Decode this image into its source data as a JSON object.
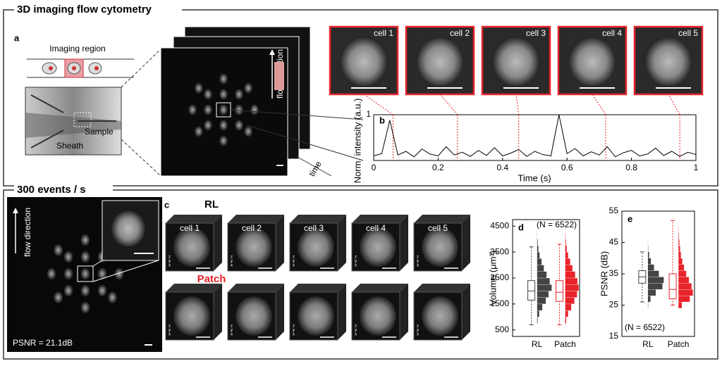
{
  "top_section": {
    "title": "3D imaging flow cytometry"
  },
  "panel_a": {
    "label": "a",
    "imaging_region": "Imaging region",
    "sample": "Sample",
    "sheath": "Sheath",
    "flow_direction": "flow direction",
    "time": "time"
  },
  "cells_top": [
    "cell 1",
    "cell 2",
    "cell 3",
    "cell 4",
    "cell 5"
  ],
  "panel_b": {
    "label": "b",
    "type": "line",
    "x_label": "Time (s)",
    "y_label": "Norm. intensity (a.u.)",
    "xlim": [
      0,
      1
    ],
    "xticks": [
      0,
      0.2,
      0.4,
      0.6,
      0.8,
      1
    ],
    "ylim": [
      0,
      1
    ],
    "yticks": [
      1
    ],
    "color": "#000000",
    "marker_color": "#e8232a",
    "x": [
      0,
      0.025,
      0.05,
      0.075,
      0.1,
      0.125,
      0.15,
      0.175,
      0.2,
      0.225,
      0.25,
      0.275,
      0.3,
      0.325,
      0.35,
      0.375,
      0.4,
      0.425,
      0.45,
      0.475,
      0.5,
      0.525,
      0.55,
      0.575,
      0.6,
      0.625,
      0.65,
      0.675,
      0.7,
      0.725,
      0.75,
      0.775,
      0.8,
      0.825,
      0.85,
      0.875,
      0.9,
      0.925,
      0.95,
      0.975,
      1
    ],
    "values": [
      0.1,
      0.15,
      0.88,
      0.12,
      0.2,
      0.08,
      0.25,
      0.14,
      0.1,
      0.3,
      0.12,
      0.18,
      0.09,
      0.22,
      0.11,
      0.28,
      0.1,
      0.16,
      0.24,
      0.09,
      0.2,
      0.13,
      0.1,
      1.0,
      0.15,
      0.26,
      0.1,
      0.19,
      0.12,
      0.3,
      0.08,
      0.17,
      0.22,
      0.1,
      0.14,
      0.27,
      0.11,
      0.2,
      0.09,
      0.18,
      0.13
    ],
    "cell_times": [
      0.06,
      0.26,
      0.45,
      0.72,
      0.95
    ]
  },
  "bottom_section": {
    "title": "300 events / s"
  },
  "panel_inset": {
    "flow_direction": "flow direction",
    "psnr": "PSNR = 21.1dB"
  },
  "panel_c": {
    "label": "c",
    "rows": [
      "RL",
      "Patch"
    ],
    "row_colors": [
      "#000000",
      "#e8232a"
    ],
    "cells": [
      "cell 1",
      "cell 2",
      "cell 3",
      "cell 4",
      "cell 5"
    ],
    "cube_axes": [
      "z",
      "y",
      "x"
    ]
  },
  "panel_d": {
    "label": "d",
    "note": "(N = 6522)",
    "y_label": "Volume (μm³)",
    "ylim": [
      250,
      4750
    ],
    "yticks": [
      500,
      1500,
      2500,
      3500,
      4500
    ],
    "groups": [
      "RL",
      "Patch"
    ],
    "colors": [
      "#444444",
      "#e8232a"
    ],
    "boxes": [
      {
        "whisker_low": 700,
        "q1": 1650,
        "median": 2000,
        "q3": 2400,
        "whisker_high": 3700
      },
      {
        "whisker_low": 700,
        "q1": 1600,
        "median": 1950,
        "q3": 2400,
        "whisker_high": 3800
      }
    ],
    "bins": [
      500,
      750,
      1000,
      1250,
      1500,
      1750,
      2000,
      2250,
      2500,
      2750,
      3000,
      3250,
      3500,
      3750,
      4000,
      4250,
      4500
    ],
    "counts": [
      [
        5,
        20,
        60,
        140,
        230,
        300,
        380,
        330,
        250,
        180,
        120,
        70,
        40,
        20,
        8,
        3
      ],
      [
        8,
        30,
        80,
        160,
        240,
        310,
        350,
        320,
        260,
        190,
        130,
        80,
        45,
        22,
        10,
        4
      ]
    ]
  },
  "panel_e": {
    "label": "e",
    "note": "(N = 6522)",
    "y_label": "PSNR (dB)",
    "ylim": [
      15,
      55
    ],
    "yticks": [
      15,
      25,
      35,
      45,
      55
    ],
    "groups": [
      "RL",
      "Patch"
    ],
    "colors": [
      "#444444",
      "#e8232a"
    ],
    "boxes": [
      {
        "whisker_low": 26,
        "q1": 32,
        "median": 34,
        "q3": 36,
        "whisker_high": 42
      },
      {
        "whisker_low": 25,
        "q1": 27,
        "median": 30,
        "q3": 35,
        "whisker_high": 52
      }
    ],
    "bins": [
      24,
      26,
      28,
      30,
      32,
      34,
      36,
      38,
      40,
      42,
      44,
      46,
      48,
      50,
      52
    ],
    "counts": [
      [
        10,
        60,
        180,
        330,
        360,
        250,
        140,
        70,
        30,
        10,
        4,
        2,
        1,
        0
      ],
      [
        80,
        260,
        330,
        300,
        240,
        180,
        130,
        90,
        60,
        40,
        25,
        15,
        8,
        4
      ]
    ]
  }
}
